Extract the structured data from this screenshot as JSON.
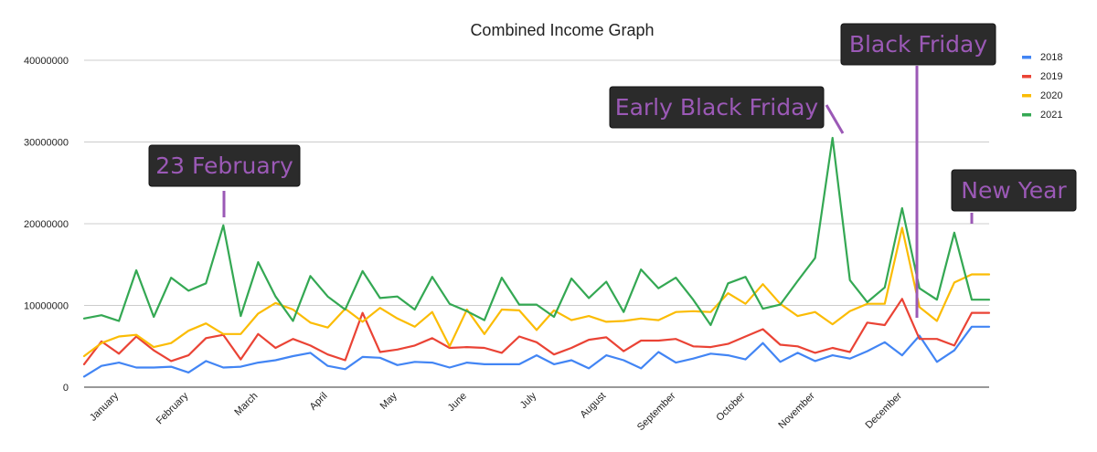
{
  "chart_data": {
    "type": "line",
    "title": "Combined Income Graph",
    "xlabel": "",
    "ylabel": "",
    "ylim": [
      0,
      40000000
    ],
    "y_ticks": [
      "0",
      "10000000",
      "20000000",
      "30000000",
      "40000000"
    ],
    "y_tick_values": [
      0,
      10000000,
      20000000,
      30000000,
      40000000
    ],
    "grid": true,
    "legend_position": "right",
    "months": [
      "January",
      "February",
      "March",
      "April",
      "May",
      "June",
      "July",
      "August",
      "September",
      "October",
      "November",
      "December"
    ],
    "month_positions": [
      2,
      6,
      10,
      14,
      18,
      22,
      26,
      30,
      34,
      38,
      42,
      47
    ],
    "x_count": 53,
    "series": [
      {
        "name": "2018",
        "color": "#4285f4",
        "values": [
          1300000,
          2600000,
          3000000,
          2400000,
          2400000,
          2500000,
          1800000,
          3200000,
          2400000,
          2500000,
          3000000,
          3300000,
          3800000,
          4200000,
          2600000,
          2200000,
          3700000,
          3600000,
          2700000,
          3100000,
          3000000,
          2400000,
          3000000,
          2800000,
          2800000,
          2800000,
          3900000,
          2800000,
          3300000,
          2300000,
          3900000,
          3300000,
          2300000,
          4300000,
          3000000,
          3500000,
          4100000,
          3900000,
          3400000,
          5400000,
          3100000,
          4200000,
          3200000,
          3900000,
          3500000,
          4400000,
          5500000,
          3900000,
          6300000,
          3100000,
          4500000,
          7400000,
          7400000
        ]
      },
      {
        "name": "2019",
        "color": "#ea4335",
        "values": [
          2800000,
          5600000,
          4100000,
          6200000,
          4500000,
          3200000,
          3900000,
          6000000,
          6400000,
          3400000,
          6500000,
          4800000,
          5900000,
          5100000,
          4000000,
          3300000,
          9100000,
          4300000,
          4600000,
          5100000,
          6000000,
          4800000,
          4900000,
          4800000,
          4200000,
          6200000,
          5500000,
          4000000,
          4800000,
          5800000,
          6100000,
          4400000,
          5700000,
          5700000,
          5900000,
          5000000,
          4900000,
          5300000,
          6200000,
          7100000,
          5200000,
          5000000,
          4200000,
          4800000,
          4300000,
          7900000,
          7600000,
          10800000,
          5900000,
          5900000,
          5100000,
          9100000,
          9100000
        ]
      },
      {
        "name": "2020",
        "color": "#fbbc04",
        "values": [
          3800000,
          5400000,
          6200000,
          6400000,
          4900000,
          5400000,
          6900000,
          7800000,
          6500000,
          6500000,
          9000000,
          10300000,
          9500000,
          7900000,
          7300000,
          9600000,
          8000000,
          9700000,
          8400000,
          7400000,
          9200000,
          5000000,
          9500000,
          6500000,
          9500000,
          9400000,
          7000000,
          9400000,
          8200000,
          8700000,
          8000000,
          8100000,
          8400000,
          8200000,
          9200000,
          9300000,
          9200000,
          11500000,
          10200000,
          12600000,
          10200000,
          8700000,
          9200000,
          7700000,
          9300000,
          10200000,
          10200000,
          19500000,
          9800000,
          8100000,
          12800000,
          13800000,
          13800000
        ]
      },
      {
        "name": "2021",
        "color": "#34a853",
        "values": [
          8400000,
          8800000,
          8100000,
          14300000,
          8600000,
          13400000,
          11800000,
          12700000,
          19800000,
          8700000,
          15300000,
          11100000,
          8100000,
          13600000,
          11100000,
          9500000,
          14200000,
          10900000,
          11100000,
          9500000,
          13500000,
          10200000,
          9300000,
          8200000,
          13400000,
          10100000,
          10100000,
          8600000,
          13300000,
          10900000,
          12900000,
          9200000,
          14400000,
          12100000,
          13400000,
          10700000,
          7600000,
          12700000,
          13500000,
          9600000,
          10100000,
          13000000,
          15800000,
          30500000,
          13100000,
          10400000,
          12200000,
          21900000,
          12100000,
          10700000,
          18900000,
          10700000,
          10700000
        ]
      }
    ],
    "annotations": [
      {
        "label": "23 February",
        "x_index": 8
      },
      {
        "label": "Early Black Friday",
        "x_index": 43
      },
      {
        "label": "Black Friday",
        "x_index": 47
      },
      {
        "label": "New Year",
        "x_index": 50
      }
    ]
  }
}
